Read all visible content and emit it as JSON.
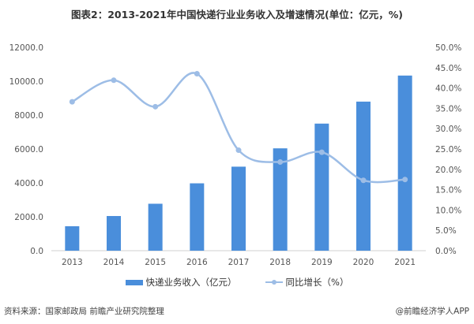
{
  "chart_data": {
    "type": "bar+line",
    "title": "图表2：2013-2021年中国快递行业业务收入及增速情况(单位：亿元，%)",
    "categories": [
      "2013",
      "2014",
      "2015",
      "2016",
      "2017",
      "2018",
      "2019",
      "2020",
      "2021"
    ],
    "series": [
      {
        "name": "快递业务收入（亿元）",
        "type": "bar",
        "axis": "left",
        "color": "#4a8edb",
        "values": [
          1441.7,
          2045.4,
          2769.6,
          3974.4,
          4957.1,
          6038.4,
          7497.8,
          8795.4,
          10332.3
        ]
      },
      {
        "name": "同比增长（%）",
        "type": "line",
        "axis": "right",
        "color": "#9dbde6",
        "values": [
          36.6,
          41.9,
          35.4,
          43.5,
          24.7,
          21.8,
          24.2,
          17.3,
          17.5
        ]
      }
    ],
    "left_axis": {
      "range": [
        0,
        12000
      ],
      "ticks": [
        "0.0",
        "2000.0",
        "4000.0",
        "6000.0",
        "8000.0",
        "10000.0",
        "12000.0"
      ]
    },
    "right_axis": {
      "range": [
        0,
        50
      ],
      "ticks": [
        "0.0%",
        "5.0%",
        "10.0%",
        "15.0%",
        "20.0%",
        "25.0%",
        "30.0%",
        "35.0%",
        "40.0%",
        "45.0%",
        "50.0%"
      ]
    },
    "grid": false,
    "legend": "bottom"
  },
  "footer": {
    "source": "资料来源：国家邮政局 前瞻产业研究院整理",
    "credit": "@前瞻经济学人APP"
  }
}
